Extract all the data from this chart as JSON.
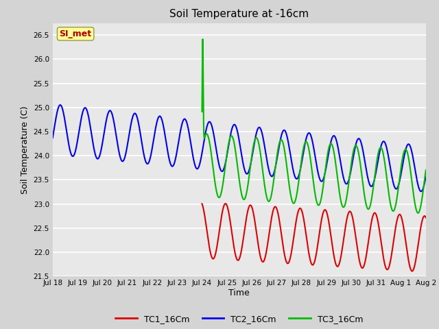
{
  "title": "Soil Temperature at -16cm",
  "xlabel": "Time",
  "ylabel": "Soil Temperature (C)",
  "ylim": [
    21.5,
    26.75
  ],
  "yticks": [
    21.5,
    22.0,
    22.5,
    23.0,
    23.5,
    24.0,
    24.5,
    25.0,
    25.5,
    26.0,
    26.5
  ],
  "bg_color": "#e8e8e8",
  "grid_color": "#ffffff",
  "line_colors": {
    "TC1": "#dd0000",
    "TC2": "#0000ee",
    "TC3": "#00bb00"
  },
  "legend_label": "SI_met",
  "legend_text_color": "#aa0000",
  "legend_bg": "#ffff99",
  "xtick_labels": [
    "Jul 18",
    "Jul 19",
    "Jul 20",
    "Jul 21",
    "Jul 22",
    "Jul 23",
    "Jul 24",
    "Jul 25",
    "Jul 26",
    "Jul 27",
    "Jul 28",
    "Jul 29",
    "Jul 30",
    "Jul 31",
    "Aug 1",
    "Aug 2"
  ]
}
